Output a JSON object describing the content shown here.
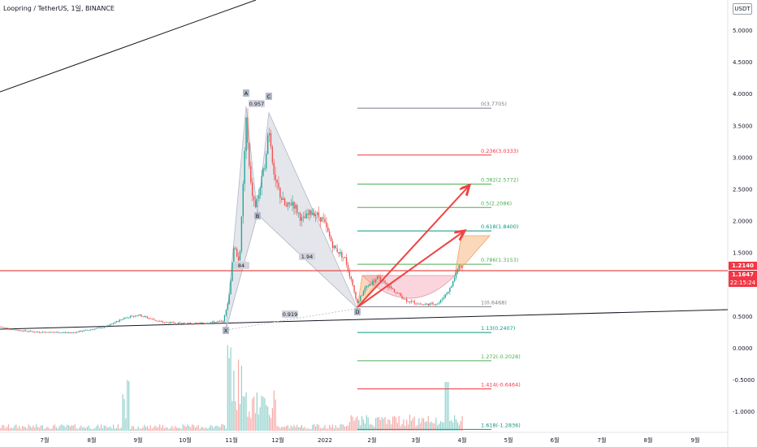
{
  "header": {
    "title": "Loopring / TetherUS, 1일, BINANCE",
    "currency": "USDT"
  },
  "price_tags": {
    "last": "1.2140",
    "prev": "1.1647",
    "countdown": "22:15:24"
  },
  "chart_data": {
    "type": "candlestick",
    "symbol": "Loopring / TetherUS",
    "interval": "1일",
    "exchange": "BINANCE",
    "y_ticks": [
      "5.0000",
      "4.5000",
      "4.0000",
      "3.5000",
      "3.0000",
      "2.5000",
      "2.0000",
      "1.5000",
      "1.0000",
      "0.5000",
      "0.0000",
      "-0.5000",
      "-1.0000"
    ],
    "y_tick_values": [
      5.0,
      4.5,
      4.0,
      3.5,
      3.0,
      2.5,
      2.0,
      1.5,
      1.0,
      0.5,
      0.0,
      -0.5,
      -1.0
    ],
    "ylim": [
      -1.2,
      5.4
    ],
    "x_ticks": [
      "7월",
      "8월",
      "9월",
      "10월",
      "11월",
      "12월",
      "2022",
      "2월",
      "3월",
      "4월",
      "5월",
      "6월",
      "7월",
      "8월",
      "9월"
    ],
    "fib_levels": [
      {
        "ratio": "0",
        "price": "3.7705",
        "value": 3.7705,
        "color": "#787b86"
      },
      {
        "ratio": "0.236",
        "price": "3.0333",
        "value": 3.0333,
        "color": "#f23645"
      },
      {
        "ratio": "0.382",
        "price": "2.5772",
        "value": 2.5772,
        "color": "#4caf50"
      },
      {
        "ratio": "0.5",
        "price": "2.2086",
        "value": 2.2086,
        "color": "#4caf50"
      },
      {
        "ratio": "0.618",
        "price": "1.8400",
        "value": 1.84,
        "color": "#089981"
      },
      {
        "ratio": "0.786",
        "price": "1.3153",
        "value": 1.3153,
        "color": "#4caf50"
      },
      {
        "ratio": "1",
        "price": "0.6468",
        "value": 0.6468,
        "color": "#787b86"
      },
      {
        "ratio": "1.13",
        "price": "0.2407",
        "value": 0.2407,
        "color": "#089981"
      },
      {
        "ratio": "1.272",
        "price": "-0.2028",
        "value": -0.2028,
        "color": "#4caf50"
      },
      {
        "ratio": "1.414",
        "price": "-0.6464",
        "value": -0.6464,
        "color": "#f23645"
      },
      {
        "ratio": "1.618",
        "price": "-1.2836",
        "value": -1.2836,
        "color": "#089981"
      }
    ],
    "pattern_labels": [
      "X",
      "A",
      "B",
      "C",
      "D"
    ],
    "pattern_ratios": [
      "0.957",
      "1.94",
      "0.919",
      "84"
    ],
    "horizontal_line": 1.214,
    "colors": {
      "up": "#26a69a",
      "down": "#ef5350",
      "hline": "#e53935",
      "arrow": "#ef4444",
      "pattern": "#b2b8c6"
    }
  }
}
